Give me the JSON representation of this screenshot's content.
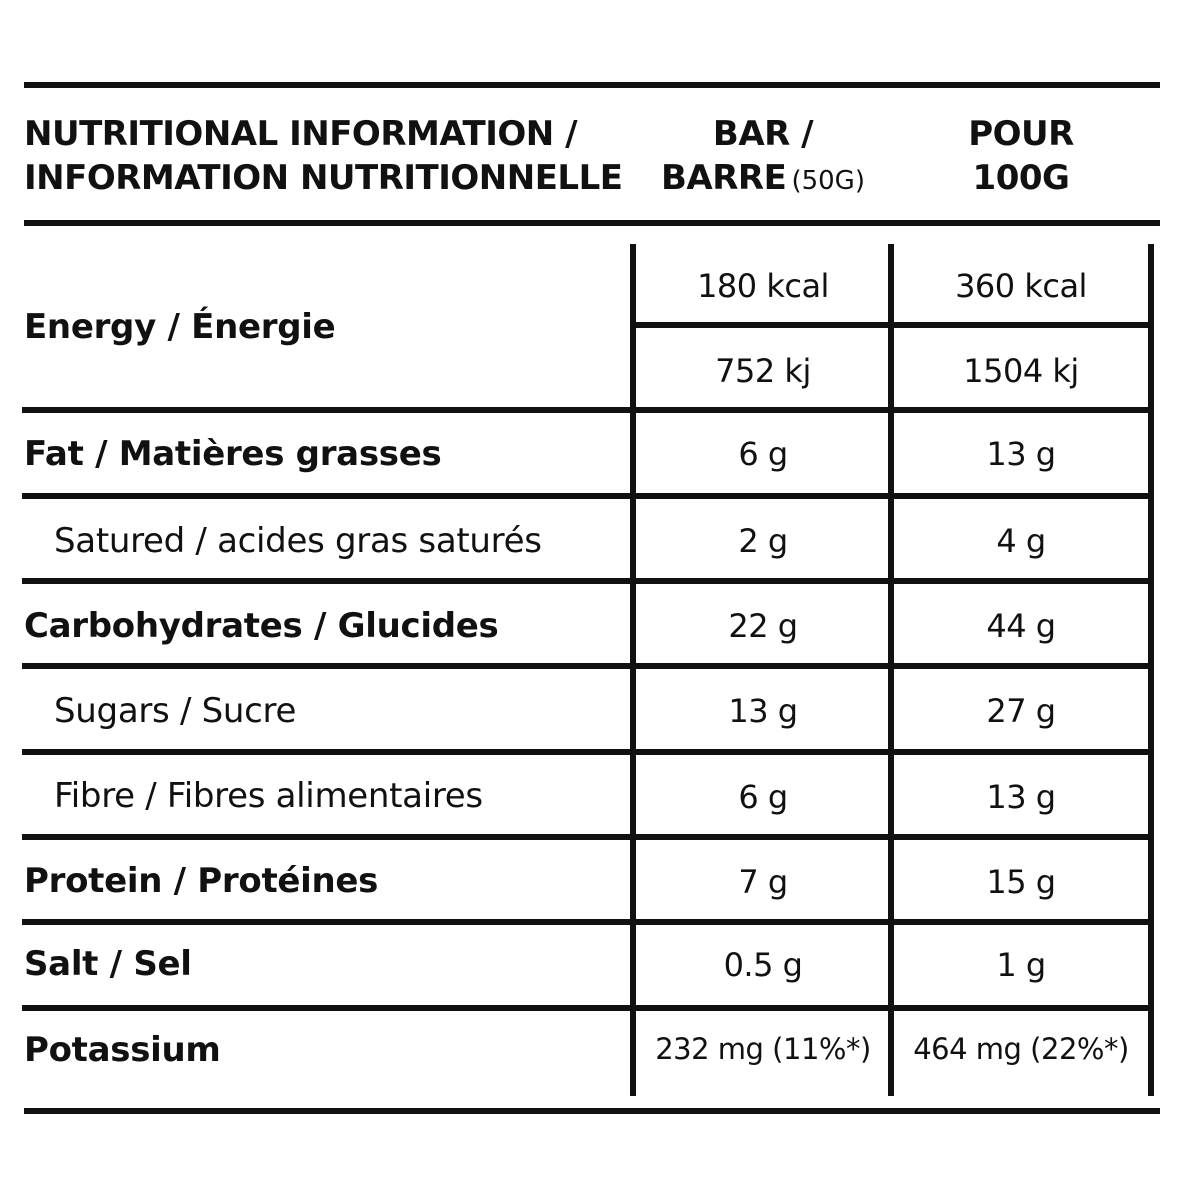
{
  "header": {
    "title_line1": "NUTRITIONAL INFORMATION /",
    "title_line2": "INFORMATION NUTRITIONNELLE",
    "col1_line1": "BAR /",
    "col1_line2": "BARRE",
    "col1_note": "(50G)",
    "col2_line1": "POUR",
    "col2_line2": "100G"
  },
  "rows": {
    "energy": {
      "label": "Energy / Énergie",
      "bar_kcal": "180 kcal",
      "per100_kcal": "360 kcal",
      "bar_kj": "752 kj",
      "per100_kj": "1504 kj"
    },
    "fat": {
      "label": "Fat / Matières grasses",
      "bar": "6 g",
      "per100": "13 g"
    },
    "saturated": {
      "label": "Satured / acides gras saturés",
      "bar": "2 g",
      "per100": "4 g"
    },
    "carbs": {
      "label": "Carbohydrates / Glucides",
      "bar": "22 g",
      "per100": "44 g"
    },
    "sugars": {
      "label": "Sugars / Sucre",
      "bar": "13 g",
      "per100": "27 g"
    },
    "fibre": {
      "label": "Fibre / Fibres alimentaires",
      "bar": "6 g",
      "per100": "13 g"
    },
    "protein": {
      "label": "Protein / Protéines",
      "bar": "7 g",
      "per100": "15 g"
    },
    "salt": {
      "label": "Salt / Sel",
      "bar": "0.5 g",
      "per100": "1 g"
    },
    "potassium": {
      "label": "Potassium",
      "bar": "232 mg (11%*)",
      "per100": "464 mg (22%*)"
    }
  }
}
